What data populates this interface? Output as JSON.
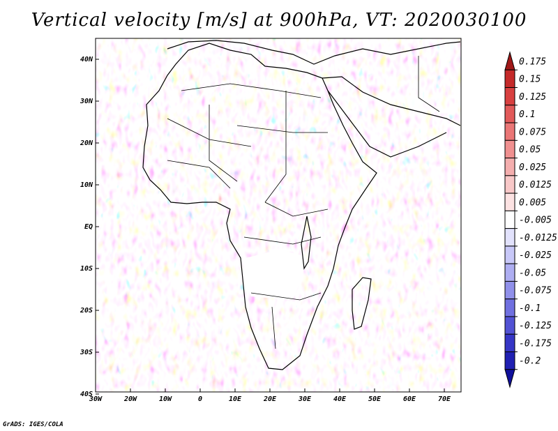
{
  "title": "Vertical velocity [m/s] at 900hPa, VT: 2020030100",
  "credit": "GrADS: IGES/COLA",
  "map": {
    "lat_ticks": [
      "40N",
      "30N",
      "20N",
      "10N",
      "EQ",
      "10S",
      "20S",
      "30S",
      "40S"
    ],
    "lon_ticks": [
      "30W",
      "20W",
      "10W",
      "0",
      "10E",
      "20E",
      "30E",
      "40E",
      "50E",
      "60E",
      "70E"
    ]
  },
  "colorbar": {
    "labels": [
      "0.175",
      "0.15",
      "0.125",
      "0.1",
      "0.075",
      "0.05",
      "0.025",
      "0.0125",
      "0.005",
      "-0.005",
      "-0.0125",
      "-0.025",
      "-0.05",
      "-0.075",
      "-0.1",
      "-0.125",
      "-0.175",
      "-0.2"
    ],
    "colors": [
      "#a01818",
      "#c52a2a",
      "#d84040",
      "#e25a5a",
      "#ea7676",
      "#f09090",
      "#f4aeae",
      "#f8c8c8",
      "#fce2e2",
      "#ffffff",
      "#e2e2fc",
      "#c8c8f8",
      "#aeaef2",
      "#9090ea",
      "#7070e0",
      "#5252d4",
      "#3636c6",
      "#2020b2",
      "#10109c"
    ]
  }
}
